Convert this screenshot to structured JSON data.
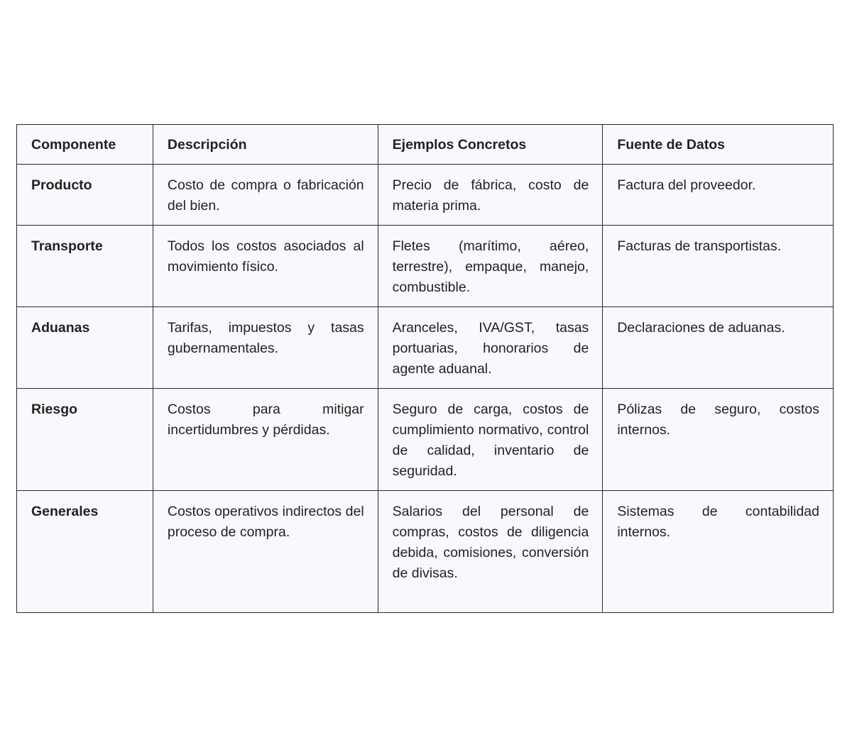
{
  "table": {
    "headers": [
      "Componente",
      "Descripción",
      "Ejemplos Concretos",
      "Fuente de Datos"
    ],
    "rows": [
      [
        "Producto",
        "Costo de compra o fabricación del bien.",
        "Precio de fábrica, costo de materia prima.",
        "Factura del proveedor."
      ],
      [
        "Transporte",
        "Todos los costos asociados al movimiento físico.",
        "Fletes (marítimo, aéreo, terrestre), empaque, manejo, combustible.",
        "Facturas de transportistas."
      ],
      [
        "Aduanas",
        "Tarifas, impuestos y tasas gubernamentales.",
        "Aranceles, IVA/GST, tasas portuarias, honorarios de agente aduanal.",
        "Declaraciones de aduanas."
      ],
      [
        "Riesgo",
        "Costos para mitigar incertidumbres y pérdidas.",
        "Seguro de carga, costos de cumplimiento normativo, control de calidad, inventario de seguridad.",
        "Pólizas de seguro, costos internos."
      ],
      [
        "Generales",
        "Costos operativos indirectos del proceso de compra.",
        "Salarios del personal de compras, costos de diligencia debida, comisiones, conversión de divisas.",
        "Sistemas de contabilidad internos."
      ]
    ]
  }
}
